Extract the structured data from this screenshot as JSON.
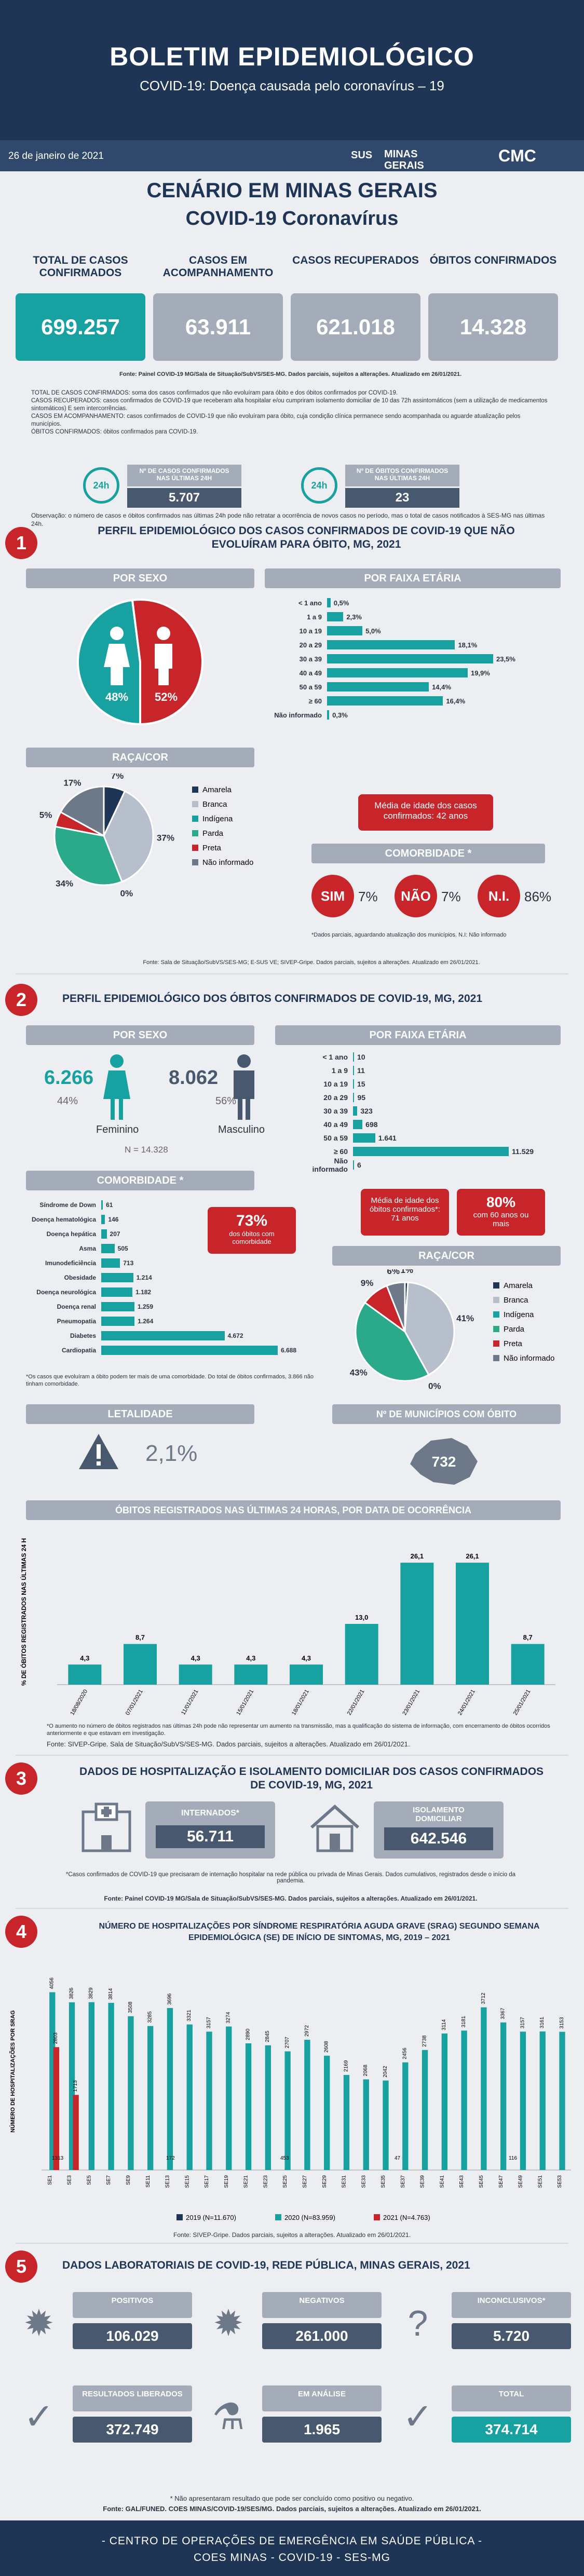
{
  "header": {
    "title": "BOLETIM EPIDEMIOLÓGICO",
    "subtitle": "COVID-19: Doença causada pelo coronavírus – 19",
    "date": "26 de janeiro de 2021",
    "logo_sus": "SUS",
    "logo_mg": "MINAS GERAIS",
    "logo_cmc": "CMC"
  },
  "scenario": {
    "title": "CENÁRIO EM MINAS GERAIS",
    "subtitle": "COVID-19 Coronavírus",
    "cards": [
      {
        "label": "TOTAL DE CASOS CONFIRMADOS",
        "value": "699.257"
      },
      {
        "label": "CASOS EM ACOMPANHAMENTO",
        "value": "63.911"
      },
      {
        "label": "CASOS RECUPERADOS",
        "value": "621.018"
      },
      {
        "label": "ÓBITOS CONFIRMADOS",
        "value": "14.328"
      }
    ],
    "source": "Fonte: Painel COVID-19 MG/Sala de Situação/SubVS/SES-MG. Dados parciais, sujeitos a alterações. Atualizado em 26/01/2021.",
    "definitions": [
      "TOTAL DE CASOS CONFIRMADOS: soma dos casos confirmados que não evoluíram para óbito e dos óbitos confirmados por COVID-19.",
      "CASOS RECUPERADOS: casos confirmados de COVID-19 que receberam alta hospitalar e/ou cumpriram isolamento domiciliar de 10 das 72h assintomáticos (sem a utilização de medicamentos sintomáticos) E sem intercorrências.",
      "CASOS EM ACOMPANHAMENTO: casos confirmados de COVID-19 que não evoluíram para óbito, cuja condição clínica permanece sendo acompanhada ou aguarde atualização pelos municípios.",
      "ÓBITOS CONFIRMADOS: óbitos confirmados para COVID-19."
    ],
    "last24": [
      {
        "icon_text": "24h",
        "label": "Nº DE CASOS CONFIRMADOS NAS ÚLTIMAS 24H",
        "value": "5.707"
      },
      {
        "icon_text": "24h",
        "label": "Nº DE ÓBITOS CONFIRMADOS NAS ÚLTIMAS 24H",
        "value": "23"
      }
    ],
    "observation": "Observação: o número de casos e óbitos confirmados nas últimas 24h pode não retratar a ocorrência de novos casos no período, mas o total de casos notificados à SES-MG nas últimas 24h."
  },
  "section1": {
    "number": "1",
    "title": "PERFIL EPIDEMIOLÓGICO DOS CASOS CONFIRMADOS DE COVID-19 QUE NÃO EVOLUÍRAM PARA ÓBITO, MG, 2021",
    "sex_title": "POR SEXO",
    "age_title": "POR FAIXA ETÁRIA",
    "race_title": "RAÇA/COR",
    "mean_age": "Média de idade dos casos confirmados: 42 anos",
    "comorb_title": "COMORBIDADE *",
    "comorb_items": [
      {
        "label": "SIM",
        "value": "7%"
      },
      {
        "label": "NÃO",
        "value": "7%"
      },
      {
        "label": "N.I.",
        "value": "86%"
      }
    ],
    "comorb_note": "*Dados parciais, aguardando atualização dos municípios. N.I: Não informado",
    "source": "Fonte: Sala de Situação/SubVS/SES-MG; E-SUS VE; SIVEP-Gripe. Dados parciais, sujeitos a alterações. Atualizado em 26/01/2021."
  },
  "section2": {
    "number": "2",
    "title": "PERFIL EPIDEMIOLÓGICO DOS ÓBITOS CONFIRMADOS DE COVID-19, MG, 2021",
    "sex_title": "POR SEXO",
    "age_title": "POR FAIXA ETÁRIA",
    "female_value": "6.266",
    "female_pct": "44%",
    "female_label": "Feminino",
    "male_value": "8.062",
    "male_pct": "56%",
    "male_label": "Masculino",
    "total": "N = 14.328",
    "comorb_title": "COMORBIDADE *",
    "comorb_pct": "73%",
    "comorb_pct_text": "dos óbitos com comorbidade",
    "comorb_note": "*Os casos que evoluíram a óbito podem ter mais de uma comorbidade. Do total de óbitos confirmados, 3.866 não tinham comorbidade.",
    "mean_age": "Média de idade dos óbitos confirmados*: 71 anos",
    "pct60": "80%",
    "pct60_text": "com 60 anos ou mais",
    "race_title": "RAÇA/COR",
    "municipios_title": "Nº DE MUNICÍPIOS COM ÓBITO",
    "municipios_value": "732",
    "lethality_title": "LETALIDADE",
    "lethality_value": "2,1%",
    "deaths24_title": "ÓBITOS REGISTRADOS NAS ÚLTIMAS 24 HORAS, POR DATA DE OCORRÊNCIA",
    "deaths24_note": "*O aumento no número de óbitos registrados nas últimas 24h pode não representar um aumento na transmissão, mas a qualificação do sistema de informação, com encerramento de óbitos ocorridos anteriormente e que estavam em investigação.",
    "source": "Fonte: SIVEP-Gripe. Sala de Situação/SubVS/SES-MG. Dados parciais, sujeitos a alterações. Atualizado em 26/01/2021."
  },
  "section3": {
    "number": "3",
    "title": "DADOS DE HOSPITALIZAÇÃO E ISOLAMENTO DOMICILIAR DOS CASOS CONFIRMADOS DE COVID-19, MG, 2021",
    "hosp_label": "INTERNADOS*",
    "hosp_value": "56.711",
    "iso_label": "ISOLAMENTO DOMICILIAR",
    "iso_value": "642.546",
    "note": "*Casos confirmados de COVID-19 que precisaram de internação hospitalar na rede pública ou privada de Minas Gerais. Dados cumulativos, registrados desde o início da pandemia.",
    "source": "Fonte: Painel COVID-19 MG/Sala de Situação/SubVS/SES-MG. Dados parciais, sujeitos a alterações. Atualizado em 26/01/2021."
  },
  "section4": {
    "number": "4",
    "title": "NÚMERO DE HOSPITALIZAÇÕES POR SÍNDROME RESPIRATÓRIA AGUDA GRAVE (SRAG) SEGUNDO SEMANA EPIDEMIOLÓGICA (SE) DE INÍCIO DE SINTOMAS, MG, 2019 – 2021",
    "source": "Fonte: SIVEP-Gripe. Dados parciais, sujeitos a alterações. Atualizado em 26/01/2021."
  },
  "section5": {
    "number": "5",
    "title": "DADOS LABORATORIAIS DE COVID-19, REDE PÚBLICA, MINAS GERAIS, 2021",
    "items": [
      {
        "label": "POSITIVOS",
        "value": "106.029"
      },
      {
        "label": "NEGATIVOS",
        "value": "261.000"
      },
      {
        "label": "INCONCLUSIVOS*",
        "value": "5.720"
      },
      {
        "label": "RESULTADOS LIBERADOS",
        "value": "372.749"
      },
      {
        "label": "EM ANÁLISE",
        "value": "1.965"
      },
      {
        "label": "TOTAL",
        "value": "374.714"
      }
    ],
    "note": "* Não apresentaram resultado que pode ser concluído como positivo ou negativo.",
    "source": "Fonte: GAL/FUNED. COES MINAS/COVID-19/SES/MG. Dados parciais, sujeitos a alterações. Atualizado em 26/01/2021."
  },
  "footer": {
    "line1": "- CENTRO DE OPERAÇÕES DE EMERGÊNCIA EM SAÚDE PÚBLICA -",
    "line2": "COES MINAS - COVID-19 - SES-MG"
  },
  "colors": {
    "navy": "#1e3556",
    "teal": "#17a1a1",
    "red": "#c8252b",
    "gray": "#a4abb9",
    "dark": "#47586f"
  },
  "chart_data": [
    {
      "type": "pie",
      "title": "POR SEXO",
      "categories": [
        "",
        ""
      ],
      "values": [
        48,
        52
      ],
      "colors": [
        "#17a1a1",
        "#c8252b"
      ]
    },
    {
      "type": "bar",
      "title": "POR FAIXA ETÁRIA",
      "categories": [
        "< 1 ano",
        "1 a 9",
        "10 a 19",
        "20 a 29",
        "30 a 39",
        "40 a 49",
        "50 a 59",
        "≥ 60",
        "Não informado"
      ],
      "values": [
        0.5,
        2.3,
        5.0,
        18.1,
        23.5,
        19.9,
        14.4,
        16.4,
        0.3
      ],
      "labels": [
        "0,5%",
        "2,3%",
        "5,0%",
        "18,1%",
        "23,5%",
        "19,9%",
        "14,4%",
        "16,4%",
        "0,3%"
      ]
    },
    {
      "type": "pie",
      "title": "RAÇA/COR",
      "categories": [
        "Amarela",
        "Branca",
        "Indígena",
        "Parda",
        "Preta",
        "Não informado"
      ],
      "values": [
        7,
        37,
        0,
        34,
        5,
        17
      ],
      "labels": [
        "7%",
        "37%",
        "0%",
        "34%",
        "5%",
        "17%"
      ],
      "colors": [
        "#1e3556",
        "#b8bfcc",
        "#17a1a1",
        "#2aaa8a",
        "#c8252b",
        "#6d7889"
      ]
    },
    {
      "type": "bar",
      "title": "POR FAIXA ETÁRIA",
      "categories": [
        "< 1 ano",
        "1 a 9",
        "10 a 19",
        "20 a 29",
        "30 a 39",
        "40 a 49",
        "50 a 59",
        "≥ 60",
        "Não informado"
      ],
      "values": [
        10,
        11,
        15,
        95,
        323,
        698,
        1641,
        11529,
        6
      ],
      "labels": [
        "10",
        "11",
        "15",
        "95",
        "323",
        "698",
        "1.641",
        "11.529",
        "6"
      ]
    },
    {
      "type": "bar",
      "title": "COMORBIDADE *",
      "categories": [
        "Síndrome de Down",
        "Doença hematológica",
        "Doença hepática",
        "Asma",
        "Imunodeficiência",
        "Obesidade",
        "Doença neurológica",
        "Doença renal",
        "Pneumopatia",
        "Diabetes",
        "Cardiopatia"
      ],
      "values": [
        61,
        146,
        207,
        505,
        713,
        1214,
        1182,
        1259,
        1264,
        4672,
        6688
      ],
      "labels": [
        "61",
        "146",
        "207",
        "505",
        "713",
        "1.214",
        "1.182",
        "1.259",
        "1.264",
        "4.672",
        "6.688"
      ]
    },
    {
      "type": "pie",
      "title": "RAÇA/COR",
      "categories": [
        "Amarela",
        "Branca",
        "Indígena",
        "Parda",
        "Preta",
        "Não informado"
      ],
      "values": [
        1,
        41,
        0,
        43,
        9,
        6
      ],
      "labels": [
        "1%",
        "41%",
        "0%",
        "43%",
        "9%",
        "6%"
      ],
      "colors": [
        "#1e3556",
        "#b8bfcc",
        "#17a1a1",
        "#2aaa8a",
        "#c8252b",
        "#6d7889"
      ]
    },
    {
      "type": "bar",
      "title": "ÓBITOS REGISTRADOS NAS ÚLTIMAS 24 HORAS, POR DATA DE OCORRÊNCIA",
      "ylabel": "% DE ÓBITOS REGISTRADOS NAS ÚLTIMAS 24 H",
      "categories": [
        "18/08/2020",
        "07/01/2021",
        "11/01/2021",
        "15/01/2021",
        "18/01/2021",
        "22/01/2021",
        "23/01/2021",
        "24/01/2021",
        "25/01/2021"
      ],
      "values": [
        4.3,
        8.7,
        4.3,
        4.3,
        4.3,
        13.0,
        26.1,
        26.1,
        8.7
      ],
      "labels": [
        "4,3",
        "8,7",
        "4,3",
        "4,3",
        "4,3",
        "13,0",
        "26,1",
        "26,1",
        "8,7"
      ],
      "ylim": [
        0,
        30
      ]
    },
    {
      "type": "bar",
      "title": "NÚMERO DE HOSPITALIZAÇÕES POR SÍNDROME RESPIRATÓRIA AGUDA GRAVE (SRAG) SEGUNDO SEMANA EPIDEMIOLÓGICA (SE) DE INÍCIO DE SINTOMAS, MG, 2019 – 2021",
      "ylabel": "NÚMERO DE HOSPITALIZAÇÕES POR SRAG",
      "categories": [
        "SE1",
        "SE3",
        "SE5",
        "SE7",
        "SE9",
        "SE11",
        "SE13",
        "SE15",
        "SE17",
        "SE19",
        "SE21",
        "SE23",
        "SE25",
        "SE27",
        "SE29",
        "SE31",
        "SE33",
        "SE35",
        "SE37",
        "SE39",
        "SE41",
        "SE43",
        "SE45",
        "SE47",
        "SE49",
        "SE51",
        "SE53"
      ],
      "series": [
        {
          "name": "2019 (N=11.670)",
          "color": "#1e3556",
          "values": [
            null,
            null,
            null,
            null,
            null,
            null,
            null,
            null,
            null,
            null,
            null,
            null,
            null,
            null,
            null,
            null,
            null,
            null,
            null,
            null,
            null,
            null,
            null,
            null,
            null,
            null,
            null
          ]
        },
        {
          "name": "2020 (N=83.959)",
          "color": "#17a1a1",
          "values": [
            4056,
            3826,
            3829,
            3814,
            3508,
            3285,
            3696,
            3321,
            3157,
            3274,
            2890,
            2845,
            2707,
            2972,
            2608,
            2169,
            2068,
            2042,
            2456,
            2738,
            3114,
            3181,
            3712,
            3367,
            3157,
            3161,
            3153
          ]
        },
        {
          "name": "2021 (N=4.763)",
          "color": "#c8252b",
          "values": [
            2803,
            1713,
            null,
            null,
            null,
            null,
            null,
            null,
            null,
            null,
            null,
            null,
            null,
            null,
            null,
            null,
            null,
            null,
            null,
            null,
            null,
            null,
            null,
            null,
            null,
            null,
            null
          ]
        }
      ],
      "extra_labels": [
        "1313",
        "172",
        "453",
        "47",
        "116"
      ]
    }
  ]
}
